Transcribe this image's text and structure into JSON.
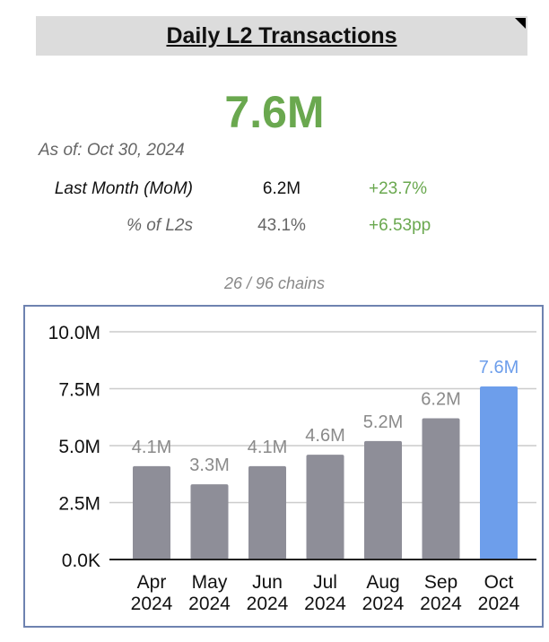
{
  "header": {
    "title": "Daily L2 Transactions"
  },
  "kpi": {
    "value": "7.6M",
    "as_of": "As of: Oct 30, 2024",
    "rows": [
      {
        "label": "Last Month (MoM)",
        "value": "6.2M",
        "change": "+23.7%"
      },
      {
        "label": "% of L2s",
        "value": "43.1%",
        "change": "+6.53pp"
      }
    ],
    "chains": "26 / 96 chains"
  },
  "colors": {
    "accent": "#6aa84f",
    "bar": "#8e8e98",
    "highlight_bar": "#6d9eeb"
  },
  "chart_data": {
    "type": "bar",
    "categories": [
      [
        "Apr",
        "2024"
      ],
      [
        "May",
        "2024"
      ],
      [
        "Jun",
        "2024"
      ],
      [
        "Jul",
        "2024"
      ],
      [
        "Aug",
        "2024"
      ],
      [
        "Sep",
        "2024"
      ],
      [
        "Oct",
        "2024"
      ]
    ],
    "values": [
      4.1,
      3.3,
      4.1,
      4.6,
      5.2,
      6.2,
      7.6
    ],
    "data_labels": [
      "4.1M",
      "3.3M",
      "4.1M",
      "4.6M",
      "5.2M",
      "6.2M",
      "7.6M"
    ],
    "unit": "M",
    "ylim": [
      0,
      10
    ],
    "yticks": [
      {
        "v": 0,
        "label": "0.0K"
      },
      {
        "v": 2.5,
        "label": "2.5M"
      },
      {
        "v": 5,
        "label": "5.0M"
      },
      {
        "v": 7.5,
        "label": "7.5M"
      },
      {
        "v": 10,
        "label": "10.0M"
      }
    ],
    "grid": true,
    "highlight_index": 6
  }
}
